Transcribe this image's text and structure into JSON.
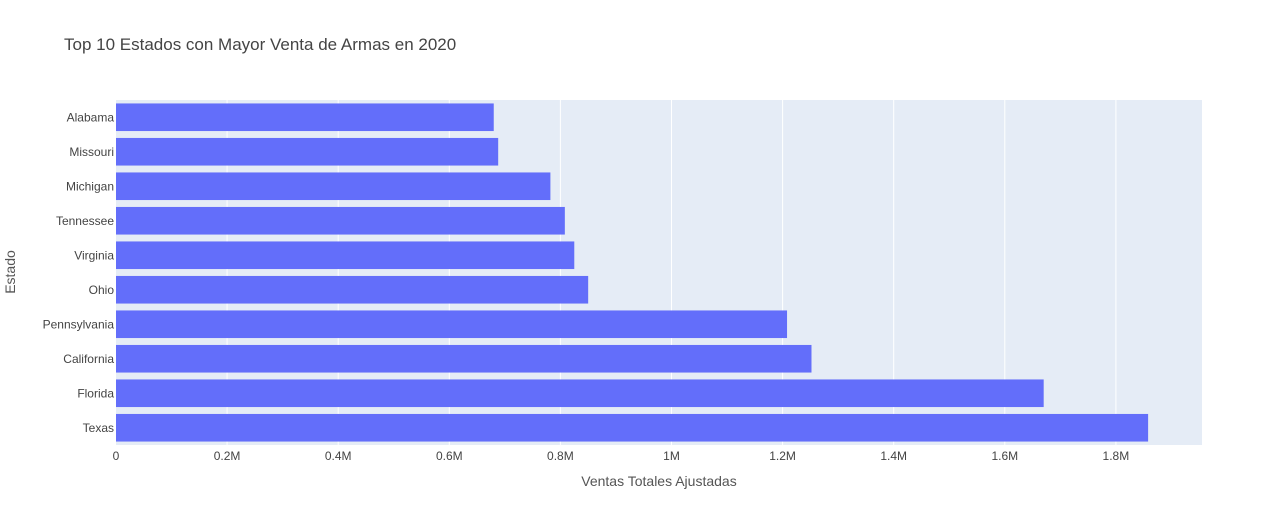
{
  "chart_data": {
    "type": "bar",
    "orientation": "horizontal",
    "title": "Top 10 Estados con Mayor Venta de Armas en 2020",
    "xlabel": "Ventas Totales Ajustadas",
    "ylabel": "Estado",
    "categories": [
      "Alabama",
      "Missouri",
      "Michigan",
      "Tennessee",
      "Virginia",
      "Ohio",
      "Pennsylvania",
      "California",
      "Florida",
      "Texas"
    ],
    "values": [
      680000,
      688000,
      782000,
      808000,
      825000,
      850000,
      1208000,
      1252000,
      1670000,
      1858000
    ],
    "xlim": [
      0,
      1955000
    ],
    "xticks": [
      0,
      200000,
      400000,
      600000,
      800000,
      1000000,
      1200000,
      1400000,
      1600000,
      1800000
    ],
    "xtick_labels": [
      "0",
      "0.2M",
      "0.4M",
      "0.6M",
      "0.8M",
      "1M",
      "1.2M",
      "1.4M",
      "1.6M",
      "1.8M"
    ],
    "grid": true,
    "colors": {
      "bar": "#636efa",
      "plot_bg": "#e5ecf6",
      "grid": "#ffffff"
    }
  }
}
